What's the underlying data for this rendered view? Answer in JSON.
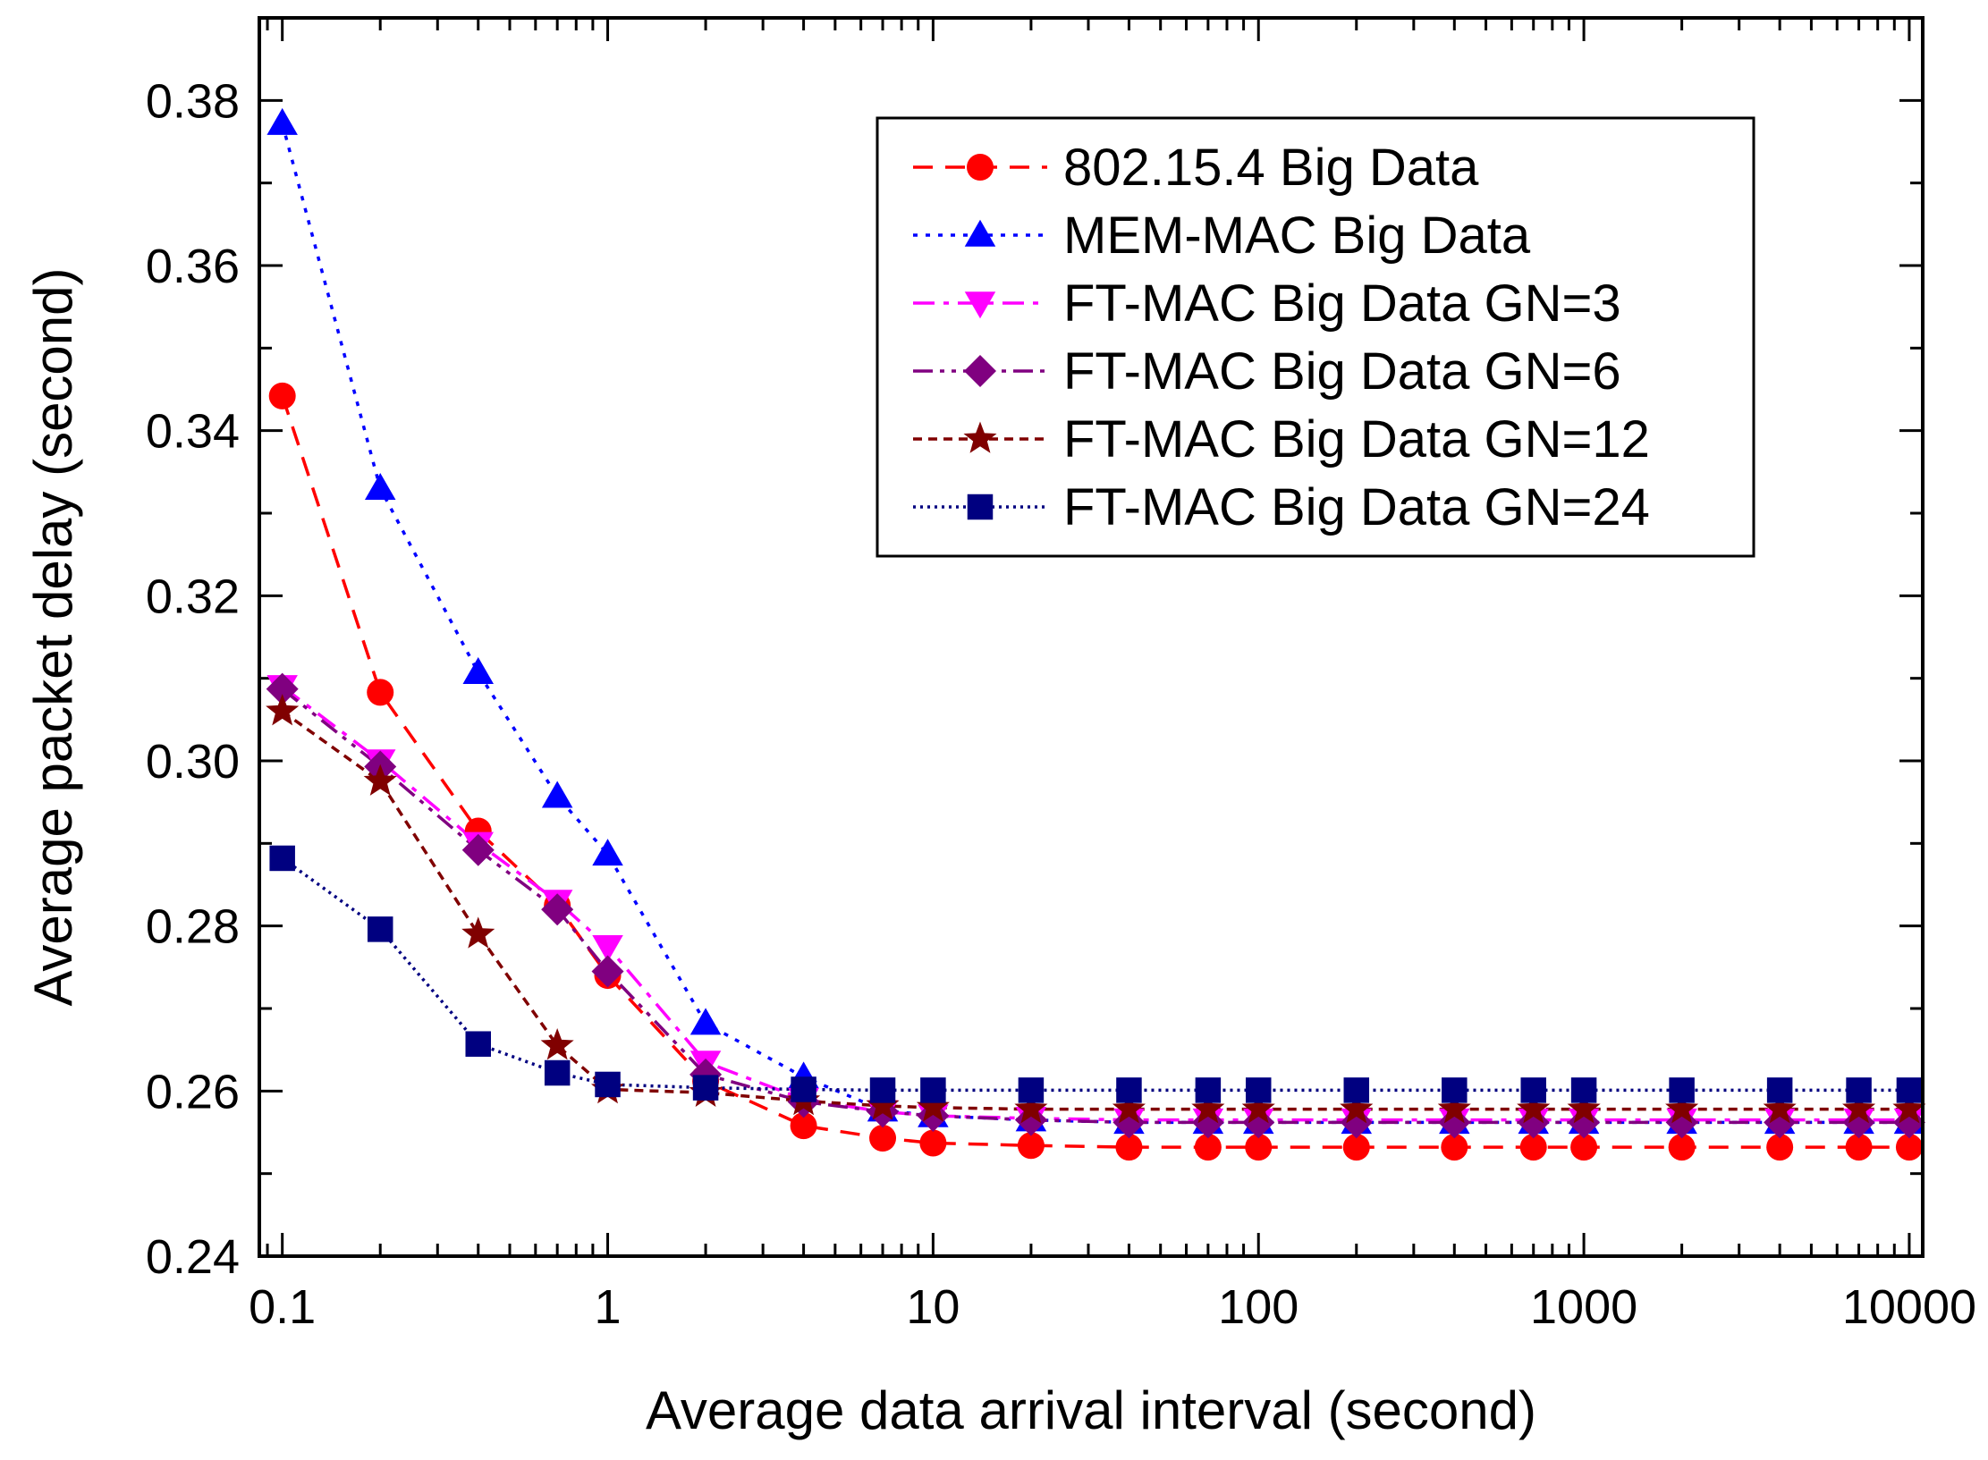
{
  "chart_data": {
    "type": "line",
    "xlabel": "Average data arrival interval (second)",
    "ylabel": "Average packet delay (second)",
    "x_scale": "log",
    "xlim": [
      0.085,
      11000
    ],
    "ylim": [
      0.24,
      0.39
    ],
    "x_ticks": [
      {
        "value": 0.1,
        "label": "0.1"
      },
      {
        "value": 1,
        "label": "1"
      },
      {
        "value": 10,
        "label": "10"
      },
      {
        "value": 100,
        "label": "100"
      },
      {
        "value": 1000,
        "label": "1000"
      },
      {
        "value": 10000,
        "label": "10000"
      }
    ],
    "y_ticks": [
      {
        "value": 0.24,
        "label": "0.24"
      },
      {
        "value": 0.26,
        "label": "0.26"
      },
      {
        "value": 0.28,
        "label": "0.28"
      },
      {
        "value": 0.3,
        "label": "0.30"
      },
      {
        "value": 0.32,
        "label": "0.32"
      },
      {
        "value": 0.34,
        "label": "0.34"
      },
      {
        "value": 0.36,
        "label": "0.36"
      },
      {
        "value": 0.38,
        "label": "0.38"
      }
    ],
    "legend_position": "top-right",
    "x": [
      0.1,
      0.2,
      0.4,
      0.7,
      1,
      2,
      4,
      7,
      10,
      20,
      40,
      70,
      100,
      200,
      400,
      700,
      1000,
      2000,
      4000,
      7000,
      10000
    ],
    "series": [
      {
        "name": "802.15.4 Big Data",
        "color": "#ff0000",
        "marker": "circle",
        "dash": "dash",
        "values": [
          0.3442,
          0.3083,
          0.2915,
          0.2825,
          0.274,
          0.2612,
          0.2558,
          0.2543,
          0.2537,
          0.2534,
          0.2532,
          0.2532,
          0.2532,
          0.2532,
          0.2532,
          0.2532,
          0.2532,
          0.2532,
          0.2532,
          0.2532,
          0.2532
        ]
      },
      {
        "name": "MEM-MAC Big Data",
        "color": "#0000ff",
        "marker": "triangle-up",
        "dash": "dot",
        "values": [
          0.3772,
          0.333,
          0.3107,
          0.2957,
          0.2887,
          0.2682,
          0.2617,
          0.2577,
          0.257,
          0.2565,
          0.2562,
          0.2562,
          0.2562,
          0.2562,
          0.2562,
          0.2562,
          0.2562,
          0.2562,
          0.2562,
          0.2562,
          0.2562
        ]
      },
      {
        "name": "FT-MAC Big Data GN=3",
        "color": "#ff00ff",
        "marker": "triangle-down",
        "dash": "dashdot",
        "values": [
          0.309,
          0.3,
          0.29,
          0.283,
          0.2775,
          0.2635,
          0.259,
          0.2575,
          0.257,
          0.2567,
          0.2565,
          0.2565,
          0.2565,
          0.2565,
          0.2565,
          0.2565,
          0.2565,
          0.2565,
          0.2565,
          0.2565,
          0.2565
        ]
      },
      {
        "name": "FT-MAC Big Data GN=6",
        "color": "#800080",
        "marker": "diamond",
        "dash": "dashdotdot",
        "values": [
          0.3087,
          0.2993,
          0.2892,
          0.282,
          0.2745,
          0.262,
          0.2587,
          0.2575,
          0.257,
          0.2565,
          0.2562,
          0.2562,
          0.2562,
          0.2562,
          0.2562,
          0.2562,
          0.2562,
          0.2562,
          0.2562,
          0.2562,
          0.2562
        ]
      },
      {
        "name": "FT-MAC Big Data GN=12",
        "color": "#800000",
        "marker": "star",
        "dash": "shortdash",
        "values": [
          0.306,
          0.2975,
          0.279,
          0.2655,
          0.2602,
          0.2598,
          0.2588,
          0.2582,
          0.258,
          0.2578,
          0.2578,
          0.2578,
          0.2578,
          0.2578,
          0.2578,
          0.2578,
          0.2578,
          0.2578,
          0.2578,
          0.2578,
          0.2578
        ]
      },
      {
        "name": "FT-MAC Big Data GN=24",
        "color": "#000080",
        "marker": "square",
        "dash": "shortdot",
        "values": [
          0.2882,
          0.2796,
          0.2657,
          0.2622,
          0.2608,
          0.2604,
          0.2602,
          0.2601,
          0.2601,
          0.2601,
          0.2601,
          0.2601,
          0.2601,
          0.2601,
          0.2601,
          0.2601,
          0.2601,
          0.2601,
          0.2601,
          0.2601,
          0.2601
        ]
      }
    ]
  }
}
